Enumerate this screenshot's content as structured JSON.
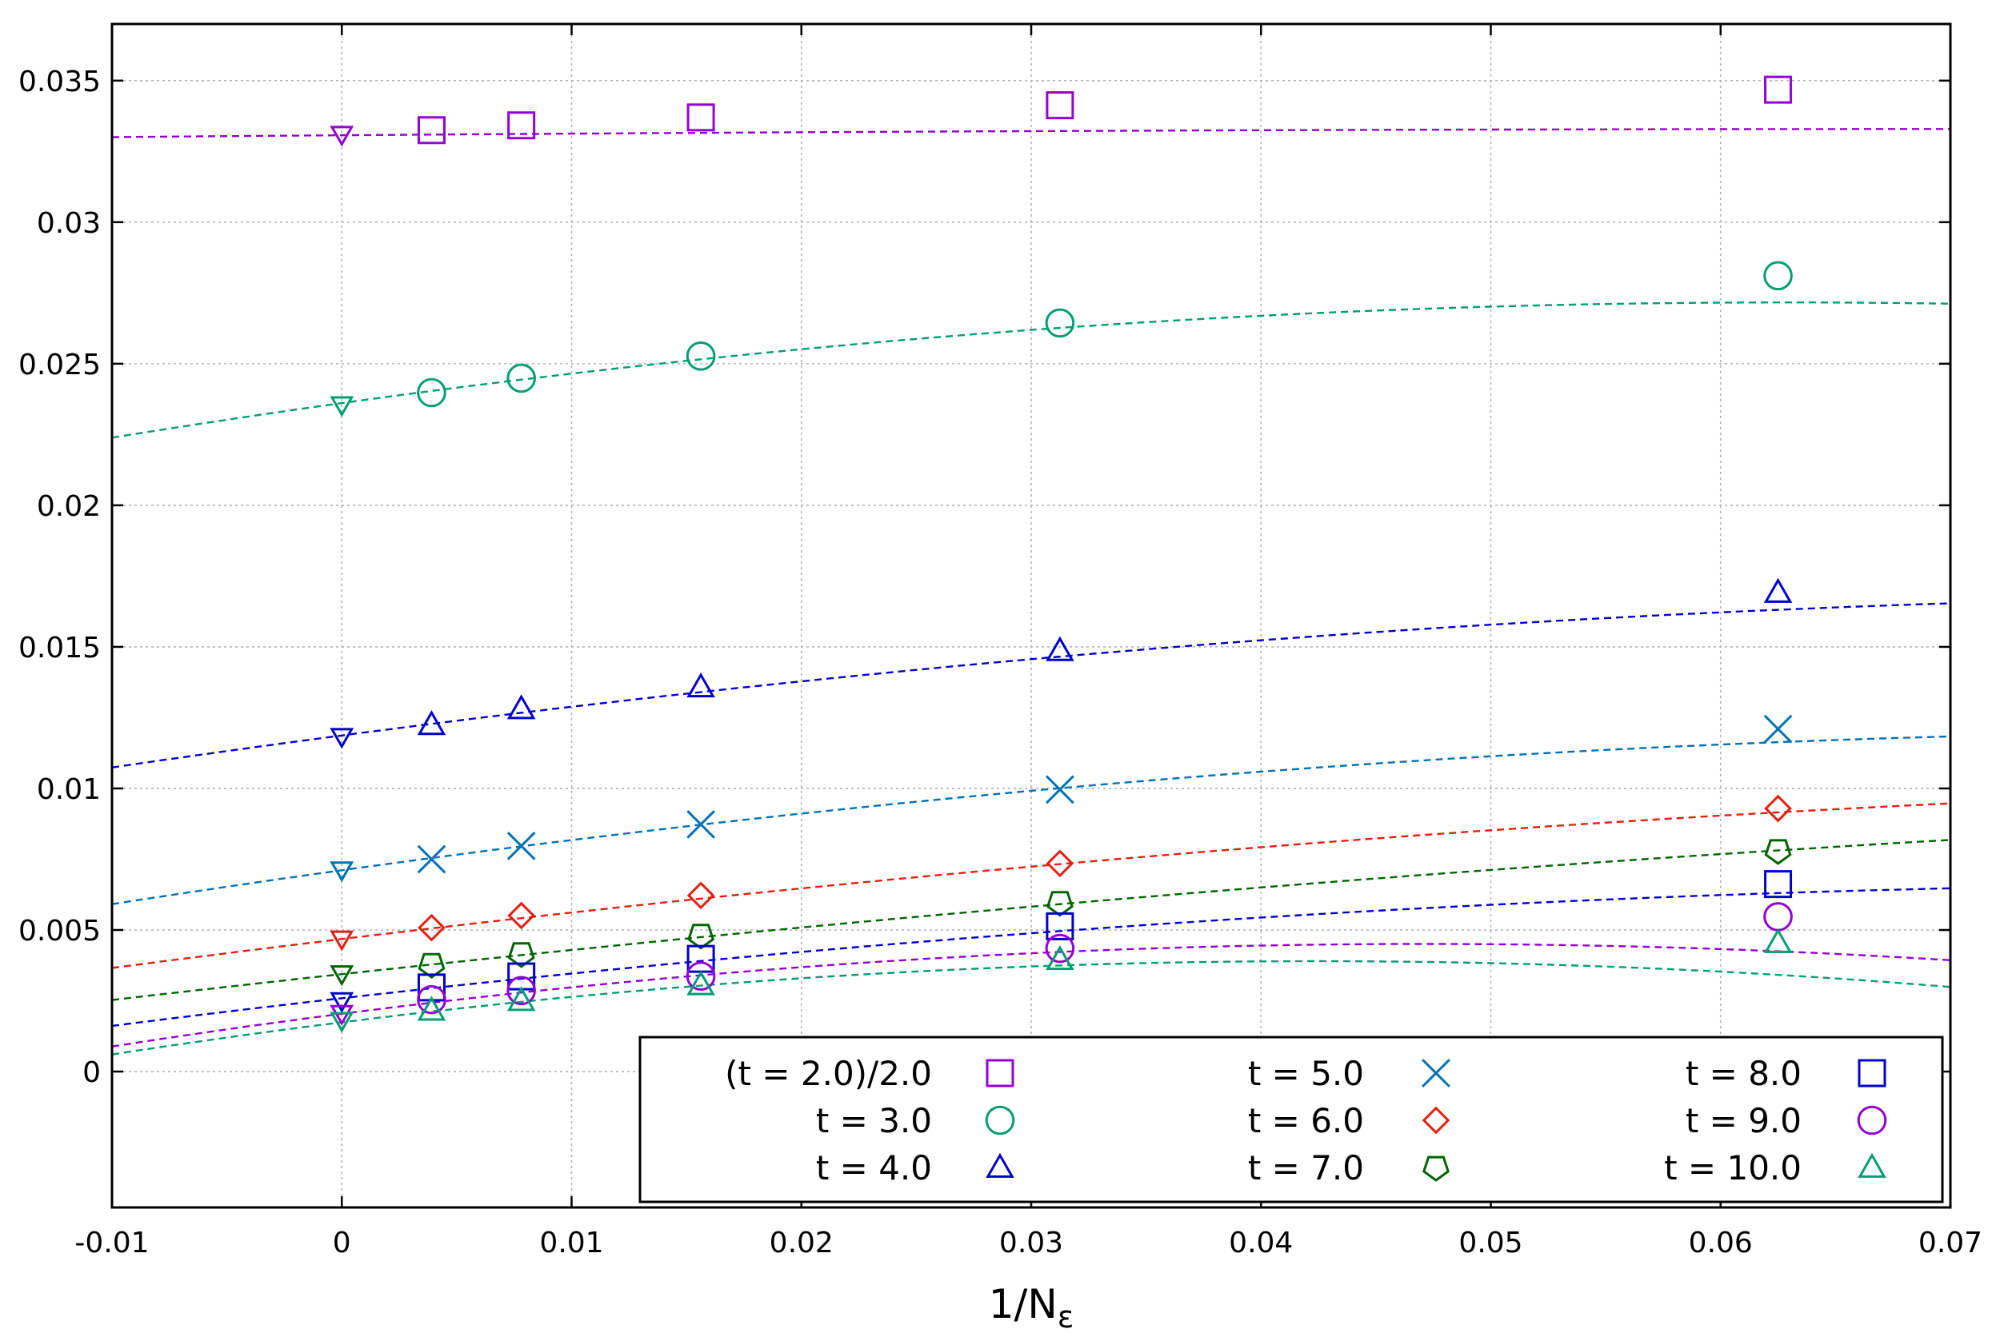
{
  "chart_data": {
    "type": "scatter",
    "title": "",
    "xlabel": "1/N",
    "xlabel_subscript": "ε",
    "ylabel": "",
    "xlim": [
      -0.01,
      0.07
    ],
    "ylim": [
      -0.0048,
      0.037
    ],
    "xticks": [
      -0.01,
      0,
      0.01,
      0.02,
      0.03,
      0.04,
      0.05,
      0.06,
      0.07
    ],
    "xtick_labels": [
      "-0.01",
      "0",
      "0.01",
      "0.02",
      "0.03",
      "0.04",
      "0.05",
      "0.06",
      "0.07"
    ],
    "yticks": [
      0,
      0.005,
      0.01,
      0.015,
      0.02,
      0.025,
      0.03,
      0.035
    ],
    "ytick_labels": [
      "0",
      "0.005",
      "0.01",
      "0.015",
      "0.02",
      "0.025",
      "0.03",
      "0.035"
    ],
    "grid": true,
    "legend_position": "bottom-right",
    "fit_lines": "dashed",
    "extrapolated_marker": "triangle-down",
    "x_points": [
      0.00390625,
      0.0078125,
      0.015625,
      0.03125,
      0.0625
    ],
    "series": [
      {
        "name": "(t = 2.0)/2.0",
        "color": "#9400d3",
        "marker": "square",
        "extrapolated": 0.0331,
        "values": [
          0.03325,
          0.03342,
          0.0337,
          0.03413,
          0.03468
        ],
        "fit": [
          0.03307,
          0.00612,
          -0.0421
        ]
      },
      {
        "name": "t = 3.0",
        "color": "#009e73",
        "marker": "circle",
        "extrapolated": 0.02355,
        "values": [
          0.02398,
          0.02449,
          0.02527,
          0.02644,
          0.02811
        ],
        "fit": [
          0.02361,
          0.1131,
          -0.8994
        ]
      },
      {
        "name": "t = 4.0",
        "color": "#0000cd",
        "marker": "triangle-up",
        "extrapolated": 0.01183,
        "values": [
          0.01225,
          0.01281,
          0.01358,
          0.01486,
          0.01692
        ],
        "fit": [
          0.01187,
          0.1072,
          -0.5786
        ]
      },
      {
        "name": "t = 5.0",
        "color": "#0072b2",
        "marker": "cross",
        "extrapolated": 0.00712,
        "values": [
          0.0075,
          0.00797,
          0.00873,
          0.00996,
          0.0121
        ],
        "fit": [
          0.00711,
          0.1131,
          -0.6514
        ]
      },
      {
        "name": "t = 6.0",
        "color": "#e51e10",
        "marker": "diamond",
        "extrapolated": 0.00468,
        "values": [
          0.00508,
          0.00551,
          0.00622,
          0.00735,
          0.00929
        ],
        "fit": [
          0.00468,
          0.0979,
          -0.4208
        ]
      },
      {
        "name": "t = 7.0",
        "color": "#006400",
        "marker": "pentagon",
        "extrapolated": 0.00345,
        "values": [
          0.00378,
          0.00416,
          0.00481,
          0.00597,
          0.0078
        ],
        "fit": [
          0.00344,
          0.0883,
          -0.2937
        ]
      },
      {
        "name": "t = 8.0",
        "color": "#0000cd",
        "marker": "square",
        "extrapolated": 0.0025,
        "values": [
          0.00297,
          0.00336,
          0.00398,
          0.00513,
          0.00662
        ],
        "fit": [
          0.00259,
          0.0923,
          -0.5262
        ]
      },
      {
        "name": "t = 9.0",
        "color": "#9400d3",
        "marker": "circle",
        "extrapolated": 0.00205,
        "values": [
          0.00254,
          0.00286,
          0.00337,
          0.00435,
          0.00547
        ],
        "fit": [
          0.00204,
          0.1045,
          -1.1068
        ]
      },
      {
        "name": "t = 10.0",
        "color": "#009e73",
        "marker": "triangle-up",
        "extrapolated": 0.0018,
        "values": [
          0.00216,
          0.0025,
          0.00306,
          0.00395,
          0.00455
        ],
        "fit": [
          0.00174,
          0.1017,
          -1.1982
        ]
      }
    ]
  }
}
